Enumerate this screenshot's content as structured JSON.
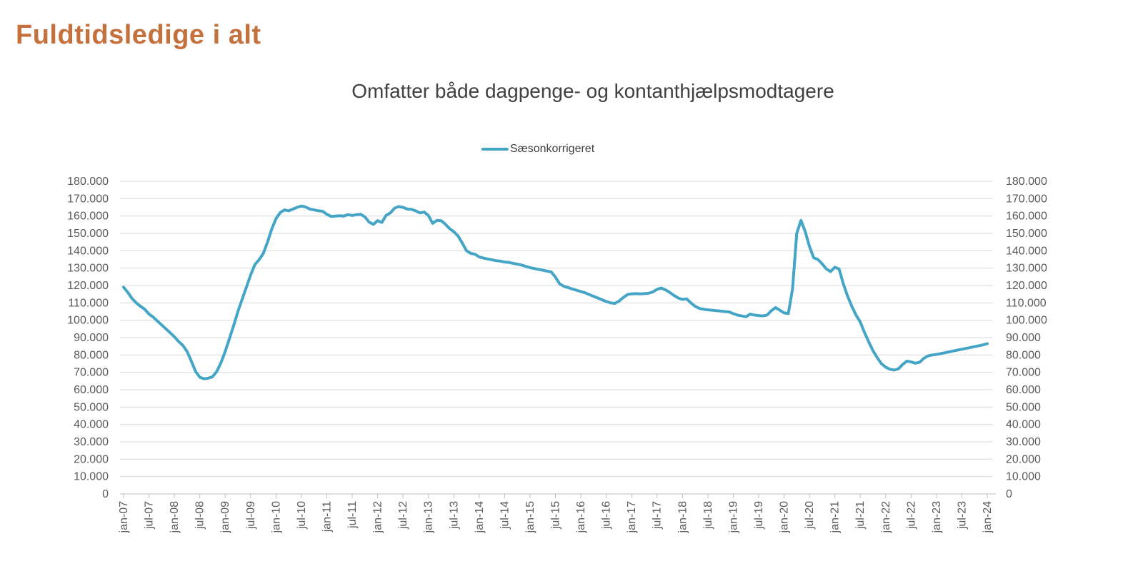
{
  "page": {
    "title": "Fuldtidsledige i alt"
  },
  "chart": {
    "subtitle": "Omfatter både dagpenge- og kontanthjælpsmodtagere",
    "legend_label": "Sæsonkorrigeret"
  },
  "colors": {
    "title": "#C4713E",
    "subtitle": "#404040",
    "axis_labels": "#595959",
    "gridline": "#D9D9D9",
    "axis_line": "#BFBFBF",
    "series": "#44A5C6",
    "background": "#FFFFFF"
  },
  "chart_data": {
    "type": "line",
    "title": "Omfatter både dagpenge- og kontanthjælpsmodtagere",
    "x_frequency": "monthly",
    "x_start": "jan-07",
    "x_end": "jan-24",
    "x_tick_labels": [
      "jan-07",
      "jul-07",
      "jan-08",
      "jul-08",
      "jan-09",
      "jul-09",
      "jan-10",
      "jul-10",
      "jan-11",
      "jul-11",
      "jan-12",
      "jul-12",
      "jan-13",
      "jul-13",
      "jan-14",
      "jul-14",
      "jan-15",
      "jul-15",
      "jan-16",
      "jul-16",
      "jan-17",
      "jul-17",
      "jan-18",
      "jul-18",
      "jan-19",
      "jul-19",
      "jan-20",
      "jul-20",
      "jan-21",
      "jul-21",
      "jan-22",
      "jul-22",
      "jan-23",
      "jul-23",
      "jan-24"
    ],
    "ylim": [
      0,
      180000
    ],
    "y_tick_step": 10000,
    "grid": "horizontal",
    "y_axis_sides": "both",
    "legend_position": "top-center",
    "series": [
      {
        "name": "Sæsonkorrigeret",
        "color": "#44A5C6",
        "values": [
          119000,
          116000,
          112500,
          110000,
          108000,
          106300,
          103500,
          101800,
          99500,
          97300,
          95000,
          92800,
          90500,
          87800,
          85500,
          82000,
          76500,
          70500,
          67200,
          66300,
          66600,
          67500,
          70500,
          75500,
          82000,
          89500,
          97000,
          105000,
          112000,
          119000,
          126000,
          132000,
          134800,
          138500,
          145000,
          152500,
          158500,
          162000,
          163500,
          163000,
          164000,
          165000,
          165800,
          165200,
          164000,
          163500,
          163000,
          162800,
          161000,
          159800,
          160000,
          160200,
          160000,
          160800,
          160300,
          160800,
          161000,
          159500,
          156500,
          155200,
          157300,
          156300,
          160300,
          161800,
          164500,
          165500,
          165000,
          164000,
          163800,
          163000,
          161800,
          162300,
          160300,
          155800,
          157500,
          157300,
          155300,
          152800,
          151000,
          148500,
          144500,
          140000,
          138500,
          138000,
          136500,
          135800,
          135300,
          134800,
          134300,
          134000,
          133500,
          133300,
          132800,
          132300,
          131800,
          131000,
          130300,
          129800,
          129300,
          128800,
          128300,
          127800,
          124800,
          121000,
          119500,
          118800,
          118000,
          117300,
          116500,
          115800,
          114800,
          113800,
          112800,
          111800,
          110800,
          110000,
          109700,
          111000,
          113000,
          114800,
          115200,
          115300,
          115200,
          115300,
          115500,
          116300,
          117800,
          118500,
          117500,
          116000,
          114300,
          112800,
          112000,
          112300,
          110000,
          108000,
          106800,
          106300,
          106000,
          105800,
          105500,
          105300,
          105000,
          104800,
          103800,
          103000,
          102500,
          102000,
          103500,
          103000,
          102700,
          102500,
          103000,
          105500,
          107300,
          105800,
          104200,
          103800,
          118000,
          150000,
          157500,
          151000,
          142500,
          136000,
          135000,
          132500,
          129500,
          128000,
          130500,
          129500,
          121000,
          114000,
          108000,
          103000,
          99000,
          93000,
          87500,
          82500,
          78500,
          75000,
          73000,
          71800,
          71300,
          72000,
          74500,
          76500,
          76000,
          75300,
          75800,
          78000,
          79500,
          80000,
          80300,
          80800,
          81300,
          81800,
          82300,
          82800,
          83300,
          83800,
          84300,
          84800,
          85300,
          85800,
          86500
        ]
      }
    ]
  }
}
